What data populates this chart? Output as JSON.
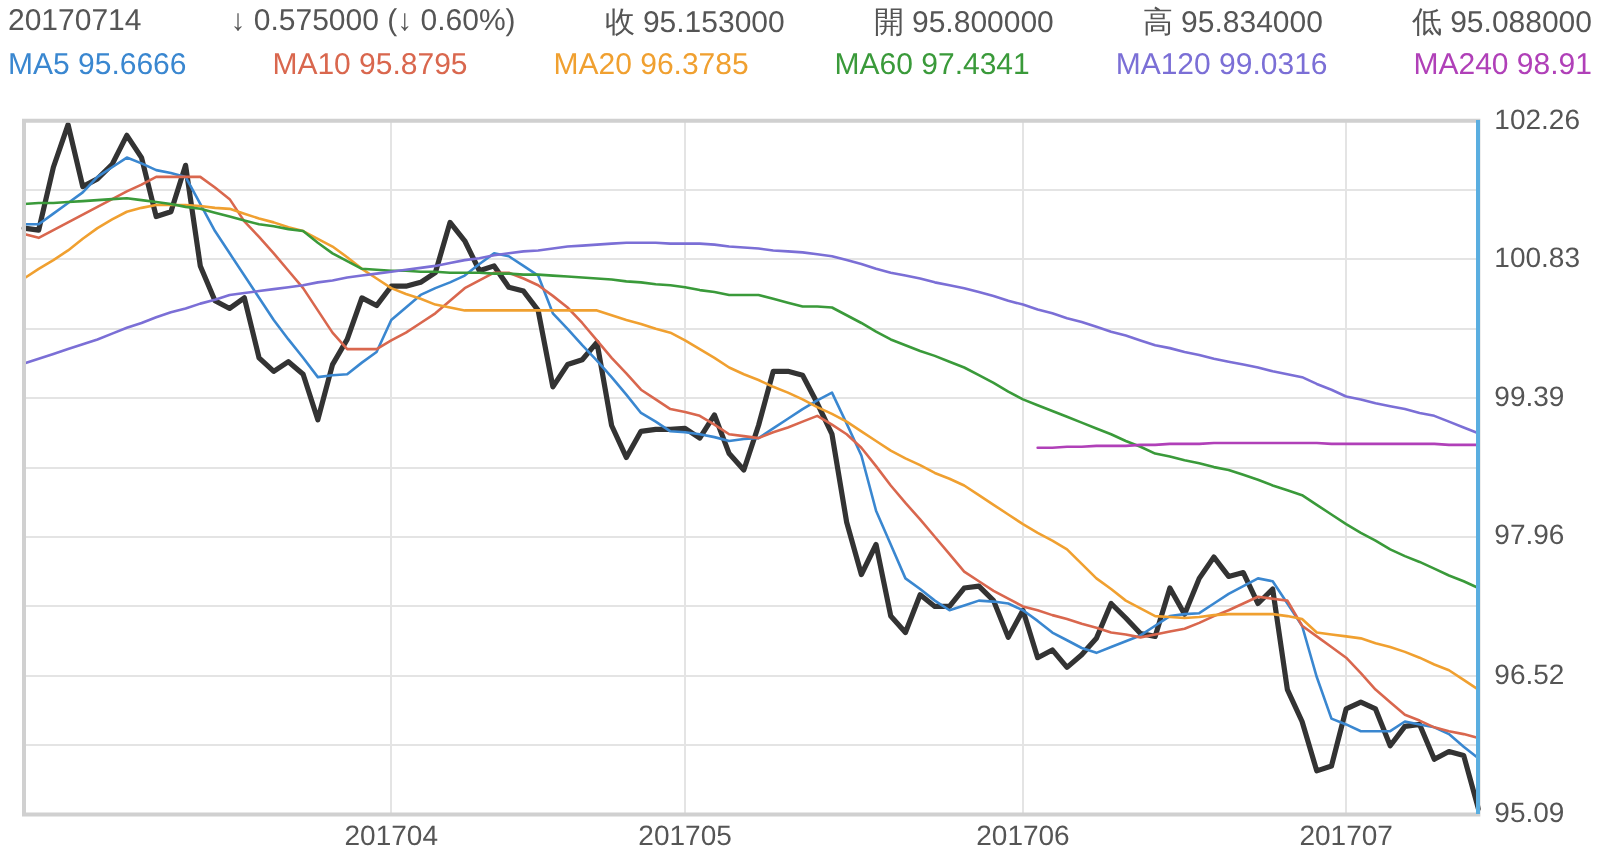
{
  "chart_data": {
    "type": "line",
    "annotations": [
      "20170714",
      "↓ 0.575000 (↓ 0.60%)",
      "收 95.153000",
      "開 95.800000",
      "高 95.834000",
      "低 95.088000"
    ],
    "categories": [
      null,
      null,
      null,
      null,
      null,
      null,
      null,
      null,
      null,
      null,
      null,
      null,
      null,
      null,
      null,
      null,
      null,
      null,
      null,
      null,
      null,
      null,
      null,
      null,
      null,
      "201704",
      null,
      null,
      null,
      null,
      null,
      null,
      null,
      null,
      null,
      null,
      null,
      null,
      null,
      null,
      null,
      null,
      null,
      null,
      null,
      "201705",
      null,
      null,
      null,
      null,
      null,
      null,
      null,
      null,
      null,
      null,
      null,
      null,
      null,
      null,
      null,
      null,
      null,
      null,
      null,
      null,
      null,
      null,
      "201706",
      null,
      null,
      null,
      null,
      null,
      null,
      null,
      null,
      null,
      null,
      null,
      null,
      null,
      null,
      null,
      null,
      null,
      null,
      null,
      null,
      null,
      "201707",
      null,
      null,
      null,
      null,
      null,
      null,
      null,
      null,
      null
    ],
    "ylim": [
      95.09,
      102.26
    ],
    "yticks": [
      95.09,
      {
        "value": 95.805,
        "label": null
      },
      96.52,
      {
        "value": 97.24,
        "label": null
      },
      97.96,
      {
        "value": 98.675,
        "label": null
      },
      99.39,
      {
        "value": 100.11,
        "label": null
      },
      100.83,
      {
        "value": 101.545,
        "label": null
      },
      102.26
    ],
    "grid": true,
    "legend": "top",
    "line_style": "solid",
    "series": [
      {
        "name": "MA240 98.91",
        "color": "#b040b8",
        "values": [
          null,
          null,
          null,
          null,
          null,
          null,
          null,
          null,
          null,
          null,
          null,
          null,
          null,
          null,
          null,
          null,
          null,
          null,
          null,
          null,
          null,
          null,
          null,
          null,
          null,
          null,
          null,
          null,
          null,
          null,
          null,
          null,
          null,
          null,
          null,
          null,
          null,
          null,
          null,
          null,
          null,
          null,
          null,
          null,
          null,
          null,
          null,
          null,
          null,
          null,
          null,
          null,
          null,
          null,
          null,
          null,
          null,
          null,
          null,
          null,
          null,
          null,
          null,
          null,
          null,
          null,
          null,
          null,
          null,
          98.88,
          98.88,
          98.89,
          98.89,
          98.9,
          98.9,
          98.9,
          98.91,
          98.91,
          98.92,
          98.92,
          98.92,
          98.93,
          98.93,
          98.93,
          98.93,
          98.93,
          98.93,
          98.93,
          98.93,
          98.92,
          98.92,
          98.92,
          98.92,
          98.92,
          98.92,
          98.92,
          98.92,
          98.91,
          98.91,
          98.91
        ]
      },
      {
        "name": "MA120 99.0316",
        "color": "#7b6fd6",
        "values": [
          99.75,
          99.8,
          99.85,
          99.9,
          99.95,
          100.0,
          100.06,
          100.12,
          100.17,
          100.23,
          100.28,
          100.32,
          100.37,
          100.41,
          100.46,
          100.48,
          100.5,
          100.52,
          100.54,
          100.56,
          100.59,
          100.61,
          100.64,
          100.66,
          100.68,
          100.7,
          100.72,
          100.74,
          100.76,
          100.79,
          100.82,
          100.84,
          100.87,
          100.89,
          100.91,
          100.92,
          100.94,
          100.96,
          100.97,
          100.98,
          100.99,
          101.0,
          101.0,
          101.0,
          100.99,
          100.99,
          100.99,
          100.98,
          100.96,
          100.95,
          100.94,
          100.92,
          100.91,
          100.9,
          100.88,
          100.86,
          100.82,
          100.78,
          100.73,
          100.69,
          100.66,
          100.63,
          100.59,
          100.56,
          100.53,
          100.49,
          100.45,
          100.4,
          100.36,
          100.31,
          100.27,
          100.22,
          100.18,
          100.13,
          100.08,
          100.04,
          99.99,
          99.94,
          99.91,
          99.87,
          99.84,
          99.8,
          99.77,
          99.74,
          99.71,
          99.67,
          99.64,
          99.61,
          99.54,
          99.48,
          99.41,
          99.38,
          99.34,
          99.31,
          99.28,
          99.24,
          99.21,
          99.15,
          99.09,
          99.03
        ]
      },
      {
        "name": "MA60 97.4341",
        "color": "#3a9a3a",
        "values": [
          101.4,
          101.41,
          101.41,
          101.42,
          101.43,
          101.44,
          101.45,
          101.46,
          101.44,
          101.42,
          101.4,
          101.37,
          101.35,
          101.31,
          101.27,
          101.23,
          101.19,
          101.17,
          101.14,
          101.12,
          101.0,
          100.89,
          100.81,
          100.73,
          100.72,
          100.71,
          100.71,
          100.7,
          100.7,
          100.69,
          100.69,
          100.69,
          100.68,
          100.68,
          100.67,
          100.67,
          100.66,
          100.65,
          100.64,
          100.63,
          100.62,
          100.6,
          100.59,
          100.57,
          100.56,
          100.54,
          100.51,
          100.49,
          100.46,
          100.46,
          100.46,
          100.42,
          100.38,
          100.34,
          100.34,
          100.33,
          100.25,
          100.17,
          100.08,
          100.0,
          99.94,
          99.88,
          99.83,
          99.77,
          99.71,
          99.63,
          99.55,
          99.46,
          99.38,
          99.32,
          99.26,
          99.2,
          99.14,
          99.08,
          99.02,
          98.95,
          98.89,
          98.82,
          98.79,
          98.75,
          98.72,
          98.68,
          98.65,
          98.6,
          98.55,
          98.49,
          98.44,
          98.39,
          98.29,
          98.19,
          98.09,
          98.0,
          97.92,
          97.83,
          97.76,
          97.7,
          97.63,
          97.56,
          97.5,
          97.43
        ]
      },
      {
        "name": "MA20 96.3785",
        "color": "#f0a030",
        "values": [
          100.63,
          100.73,
          100.82,
          100.92,
          101.04,
          101.15,
          101.24,
          101.32,
          101.36,
          101.39,
          101.39,
          101.39,
          101.38,
          101.36,
          101.35,
          101.3,
          101.25,
          101.21,
          101.16,
          101.12,
          101.04,
          100.96,
          100.85,
          100.73,
          100.63,
          100.53,
          100.47,
          100.42,
          100.36,
          100.33,
          100.3,
          100.3,
          100.3,
          100.3,
          100.3,
          100.3,
          100.3,
          100.3,
          100.3,
          100.3,
          100.25,
          100.2,
          100.16,
          100.11,
          100.07,
          99.99,
          99.9,
          99.81,
          99.71,
          99.64,
          99.58,
          99.51,
          99.45,
          99.38,
          99.3,
          99.23,
          99.15,
          99.05,
          98.95,
          98.85,
          98.77,
          98.7,
          98.62,
          98.56,
          98.49,
          98.39,
          98.29,
          98.19,
          98.09,
          98.0,
          97.92,
          97.83,
          97.68,
          97.53,
          97.42,
          97.3,
          97.22,
          97.14,
          97.13,
          97.12,
          97.13,
          97.15,
          97.16,
          97.16,
          97.16,
          97.16,
          97.14,
          97.11,
          96.97,
          96.95,
          96.93,
          96.91,
          96.86,
          96.82,
          96.77,
          96.71,
          96.64,
          96.58,
          96.48,
          96.38
        ]
      },
      {
        "name": "MA10 95.8795",
        "color": "#d9674e",
        "values": [
          101.09,
          101.05,
          101.13,
          101.21,
          101.29,
          101.37,
          101.45,
          101.53,
          101.6,
          101.68,
          101.68,
          101.68,
          101.68,
          101.57,
          101.45,
          101.22,
          101.06,
          100.89,
          100.71,
          100.53,
          100.3,
          100.07,
          99.9,
          99.9,
          99.9,
          99.99,
          100.07,
          100.17,
          100.27,
          100.4,
          100.53,
          100.61,
          100.69,
          100.69,
          100.63,
          100.56,
          100.45,
          100.33,
          100.17,
          99.99,
          99.81,
          99.65,
          99.48,
          99.38,
          99.28,
          99.25,
          99.21,
          99.12,
          99.02,
          99.0,
          98.98,
          99.04,
          99.09,
          99.15,
          99.21,
          99.12,
          99.02,
          98.88,
          98.69,
          98.49,
          98.31,
          98.14,
          97.96,
          97.78,
          97.6,
          97.5,
          97.4,
          97.32,
          97.24,
          97.2,
          97.15,
          97.11,
          97.06,
          97.02,
          96.97,
          96.95,
          96.92,
          96.95,
          96.98,
          97.01,
          97.07,
          97.14,
          97.2,
          97.27,
          97.34,
          97.32,
          97.3,
          97.04,
          96.93,
          96.82,
          96.71,
          96.55,
          96.38,
          96.25,
          96.12,
          96.06,
          95.99,
          95.95,
          95.92,
          95.88
        ]
      },
      {
        "name": "MA5 95.6666",
        "color": "#3a87d0",
        "values": [
          101.19,
          101.19,
          101.3,
          101.41,
          101.52,
          101.68,
          101.78,
          101.88,
          101.82,
          101.75,
          101.72,
          101.68,
          101.4,
          101.12,
          100.89,
          100.66,
          100.43,
          100.2,
          100.0,
          99.81,
          99.61,
          99.63,
          99.64,
          99.76,
          99.87,
          100.2,
          100.33,
          100.46,
          100.53,
          100.59,
          100.66,
          100.78,
          100.89,
          100.86,
          100.76,
          100.66,
          100.27,
          100.11,
          99.94,
          99.78,
          99.61,
          99.43,
          99.24,
          99.15,
          99.05,
          99.04,
          99.02,
          98.99,
          98.95,
          98.97,
          98.98,
          99.08,
          99.18,
          99.28,
          99.37,
          99.45,
          99.13,
          98.8,
          98.23,
          97.88,
          97.53,
          97.42,
          97.3,
          97.2,
          97.25,
          97.3,
          97.29,
          97.27,
          97.2,
          97.09,
          96.97,
          96.89,
          96.81,
          96.76,
          96.82,
          96.88,
          96.94,
          97.04,
          97.14,
          97.16,
          97.17,
          97.27,
          97.37,
          97.45,
          97.53,
          97.5,
          97.27,
          97.04,
          96.51,
          96.08,
          96.02,
          95.95,
          95.95,
          95.95,
          96.05,
          96.02,
          95.99,
          95.92,
          95.79,
          95.67
        ]
      },
      {
        "color": "#333333",
        "values": [
          101.15,
          101.13,
          101.78,
          102.22,
          101.58,
          101.66,
          101.81,
          102.11,
          101.88,
          101.27,
          101.32,
          101.8,
          100.76,
          100.4,
          100.32,
          100.43,
          99.81,
          99.67,
          99.77,
          99.64,
          99.17,
          99.74,
          100.0,
          100.43,
          100.35,
          100.55,
          100.55,
          100.59,
          100.69,
          101.21,
          101.02,
          100.71,
          100.76,
          100.54,
          100.5,
          100.3,
          99.51,
          99.74,
          99.79,
          99.97,
          99.11,
          98.78,
          99.05,
          99.07,
          99.07,
          99.08,
          98.98,
          99.22,
          98.82,
          98.65,
          99.11,
          99.67,
          99.67,
          99.63,
          99.34,
          99.02,
          98.11,
          97.57,
          97.88,
          97.14,
          96.97,
          97.36,
          97.24,
          97.24,
          97.43,
          97.45,
          97.3,
          96.92,
          97.2,
          96.71,
          96.79,
          96.61,
          96.74,
          96.91,
          97.27,
          97.12,
          96.96,
          96.93,
          97.43,
          97.16,
          97.53,
          97.75,
          97.55,
          97.59,
          97.27,
          97.42,
          96.38,
          96.05,
          95.54,
          95.59,
          96.18,
          96.25,
          96.18,
          95.8,
          96.0,
          96.02,
          95.66,
          95.74,
          95.7,
          95.15
        ]
      }
    ]
  }
}
